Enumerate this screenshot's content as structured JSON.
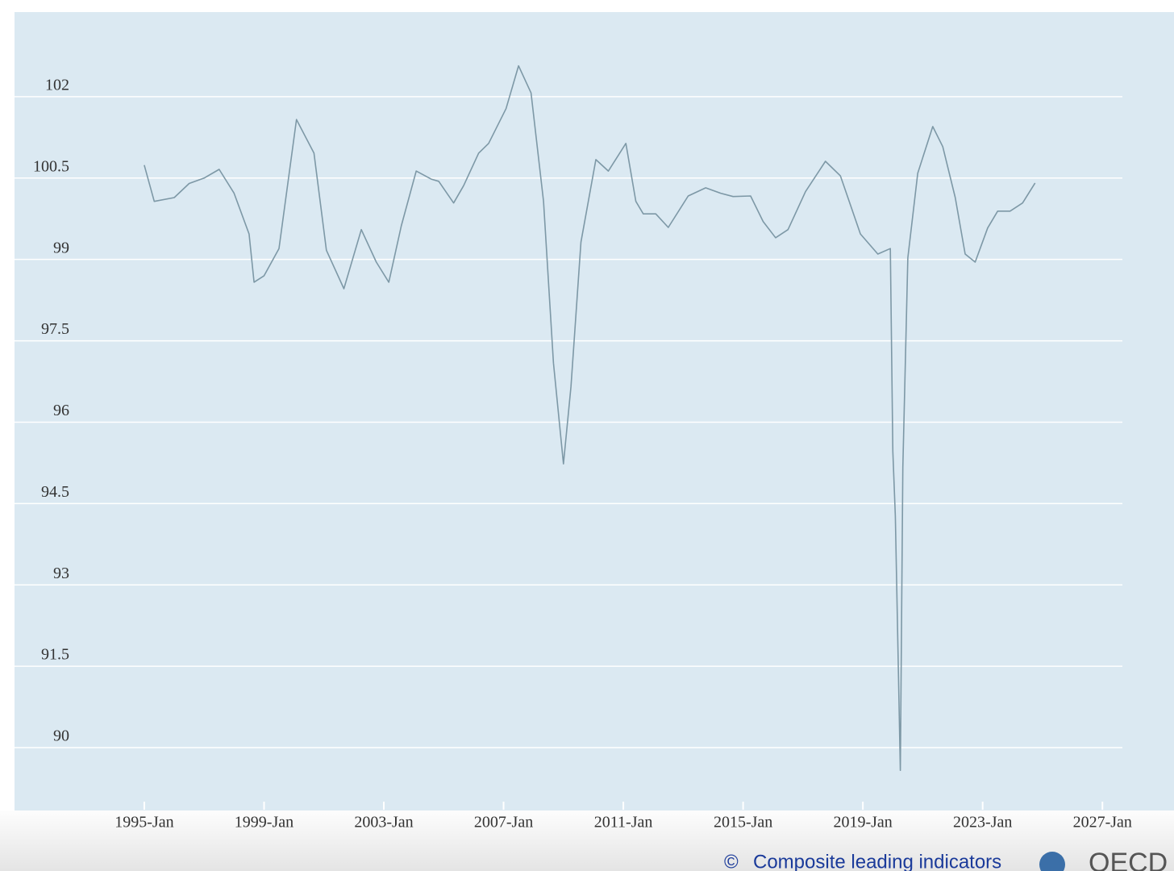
{
  "chart_data": {
    "type": "line",
    "x": [
      "1995-Jan",
      "1995-May",
      "1996-Jan",
      "1996-Jul",
      "1997-Jan",
      "1997-Jul",
      "1998-Jan",
      "1998-Jul",
      "1998-Sep",
      "1999-Jan",
      "1999-Jul",
      "2000-Feb",
      "2000-Sep",
      "2001-Feb",
      "2001-Sep",
      "2002-Apr",
      "2002-Oct",
      "2003-Mar",
      "2003-Aug",
      "2004-Feb",
      "2004-Aug",
      "2004-Nov",
      "2005-May",
      "2005-Sep",
      "2006-Mar",
      "2006-Jul",
      "2007-Feb",
      "2007-Jul",
      "2007-Dec",
      "2008-May",
      "2008-Sep",
      "2009-Jan",
      "2009-Apr",
      "2009-Aug",
      "2010-Feb",
      "2010-Jul",
      "2011-Feb",
      "2011-Jun",
      "2011-Sep",
      "2012-Feb",
      "2012-Jul",
      "2013-Mar",
      "2013-Oct",
      "2014-Apr",
      "2014-Sep",
      "2015-Apr",
      "2015-Sep",
      "2016-Feb",
      "2016-Jul",
      "2017-Feb",
      "2017-Oct",
      "2018-Apr",
      "2018-Dec",
      "2019-Jul",
      "2019-Dec",
      "2020-Jan",
      "2020-Feb",
      "2020-Apr",
      "2020-May",
      "2020-Jul",
      "2020-Nov",
      "2021-May",
      "2021-Sep",
      "2022-Feb",
      "2022-Jun",
      "2022-Oct",
      "2023-Mar",
      "2023-Jul",
      "2023-Dec",
      "2024-May",
      "2024-Oct"
    ],
    "series": [
      {
        "color": "#7d98a6",
        "values": [
          100.74,
          100.07,
          100.14,
          100.4,
          100.5,
          100.66,
          100.22,
          99.47,
          98.58,
          98.7,
          99.2,
          101.58,
          100.96,
          99.17,
          98.46,
          99.55,
          98.95,
          98.58,
          99.62,
          100.63,
          100.48,
          100.44,
          100.04,
          100.36,
          100.96,
          101.14,
          101.78,
          102.57,
          102.07,
          100.07,
          97.09,
          95.23,
          96.65,
          99.32,
          100.84,
          100.63,
          101.14,
          100.07,
          99.84,
          99.84,
          99.59,
          100.17,
          100.32,
          100.22,
          100.16,
          100.17,
          99.7,
          99.4,
          99.55,
          100.25,
          100.81,
          100.54,
          99.47,
          99.1,
          99.2,
          95.46,
          94.27,
          89.58,
          95.16,
          99.03,
          100.59,
          101.45,
          101.08,
          100.14,
          99.1,
          98.95,
          99.58,
          99.89,
          99.89,
          100.04,
          100.41
        ]
      }
    ],
    "xlim": [
      "1990-Sep",
      "2027-Sep"
    ],
    "xticks": [
      "1995-Jan",
      "1999-Jan",
      "2003-Jan",
      "2007-Jan",
      "2011-Jan",
      "2015-Jan",
      "2019-Jan",
      "2023-Jan",
      "2027-Jan"
    ],
    "ylim": [
      88.84,
      103.56
    ],
    "yticks": [
      90,
      91.5,
      93,
      94.5,
      96,
      97.5,
      99,
      100.5,
      102
    ],
    "grid": true,
    "source_prefix": "©",
    "source": "Composite leading indicators",
    "logo": "OECD"
  }
}
